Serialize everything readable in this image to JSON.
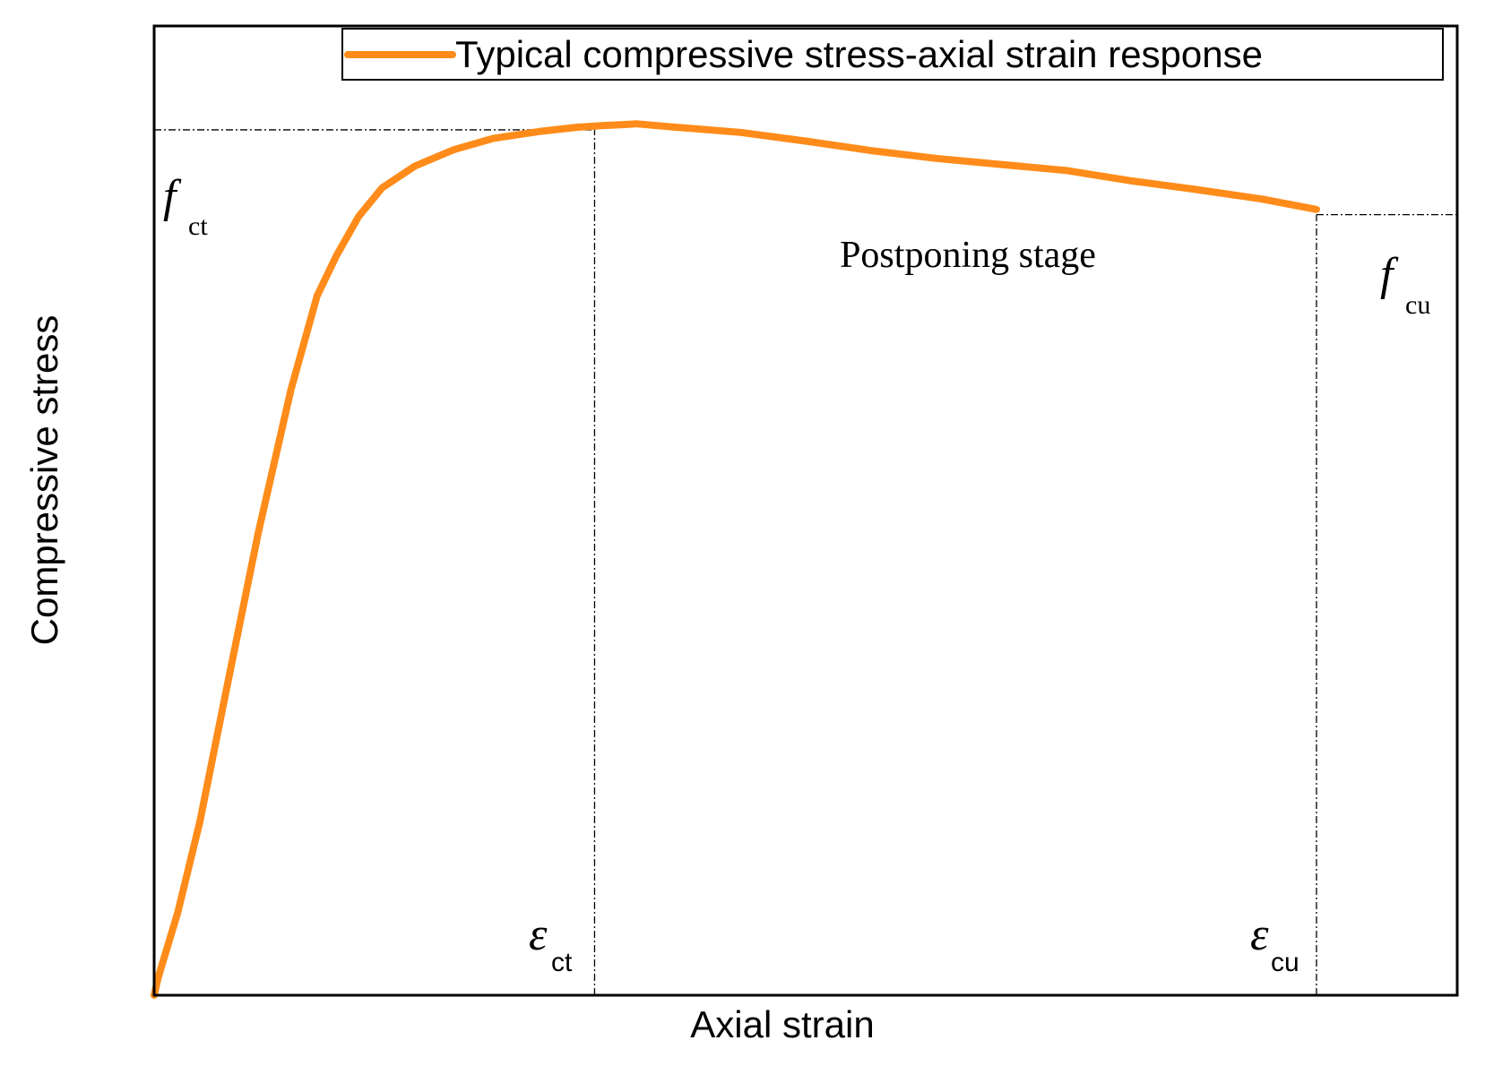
{
  "chart_data": {
    "type": "line",
    "title": "",
    "xlabel": "Axial strain",
    "ylabel": "Compressive stress",
    "xlim": [
      0,
      1
    ],
    "ylim": [
      0,
      1.12
    ],
    "grid": false,
    "legend_position": "top-right",
    "series": [
      {
        "name": "Typical compressive stress-axial strain response",
        "color": "#FF8C1A",
        "x": [
          0,
          0.003,
          0.018,
          0.035,
          0.055,
          0.08,
          0.105,
          0.125,
          0.14,
          0.157,
          0.175,
          0.2,
          0.23,
          0.26,
          0.295,
          0.325,
          0.345,
          0.36,
          0.37,
          0.4,
          0.45,
          0.5,
          0.55,
          0.6,
          0.65,
          0.7,
          0.75,
          0.8,
          0.85,
          0.892
        ],
        "y": [
          0,
          0.02,
          0.095,
          0.2,
          0.35,
          0.535,
          0.7,
          0.808,
          0.855,
          0.9,
          0.933,
          0.958,
          0.977,
          0.99,
          0.998,
          1.003,
          1.005,
          1.006,
          1.007,
          1.003,
          0.997,
          0.987,
          0.976,
          0.967,
          0.96,
          0.953,
          0.941,
          0.931,
          0.92,
          0.908
        ]
      }
    ],
    "reference_lines": [
      {
        "orientation": "horizontal",
        "value": 1.0,
        "from": 0,
        "to": 0.338,
        "style": "dash-dot"
      },
      {
        "orientation": "vertical",
        "value": 0.338,
        "from": 0,
        "to": 1.0,
        "style": "dash-dot"
      },
      {
        "orientation": "horizontal",
        "value": 0.902,
        "from": 0.892,
        "to": 1.0,
        "style": "dash-dot"
      },
      {
        "orientation": "vertical",
        "value": 0.892,
        "from": 0,
        "to": 0.902,
        "style": "dash-dot"
      }
    ],
    "annotations": {
      "f_ct": {
        "symbol": "f",
        "subscript": "ct"
      },
      "f_cu": {
        "symbol": "f",
        "subscript": "cu"
      },
      "eps_ct": {
        "symbol": "ε",
        "subscript": "ct"
      },
      "eps_cu": {
        "symbol": "ε",
        "subscript": "cu"
      },
      "stage_label": "Postponing stage"
    }
  }
}
